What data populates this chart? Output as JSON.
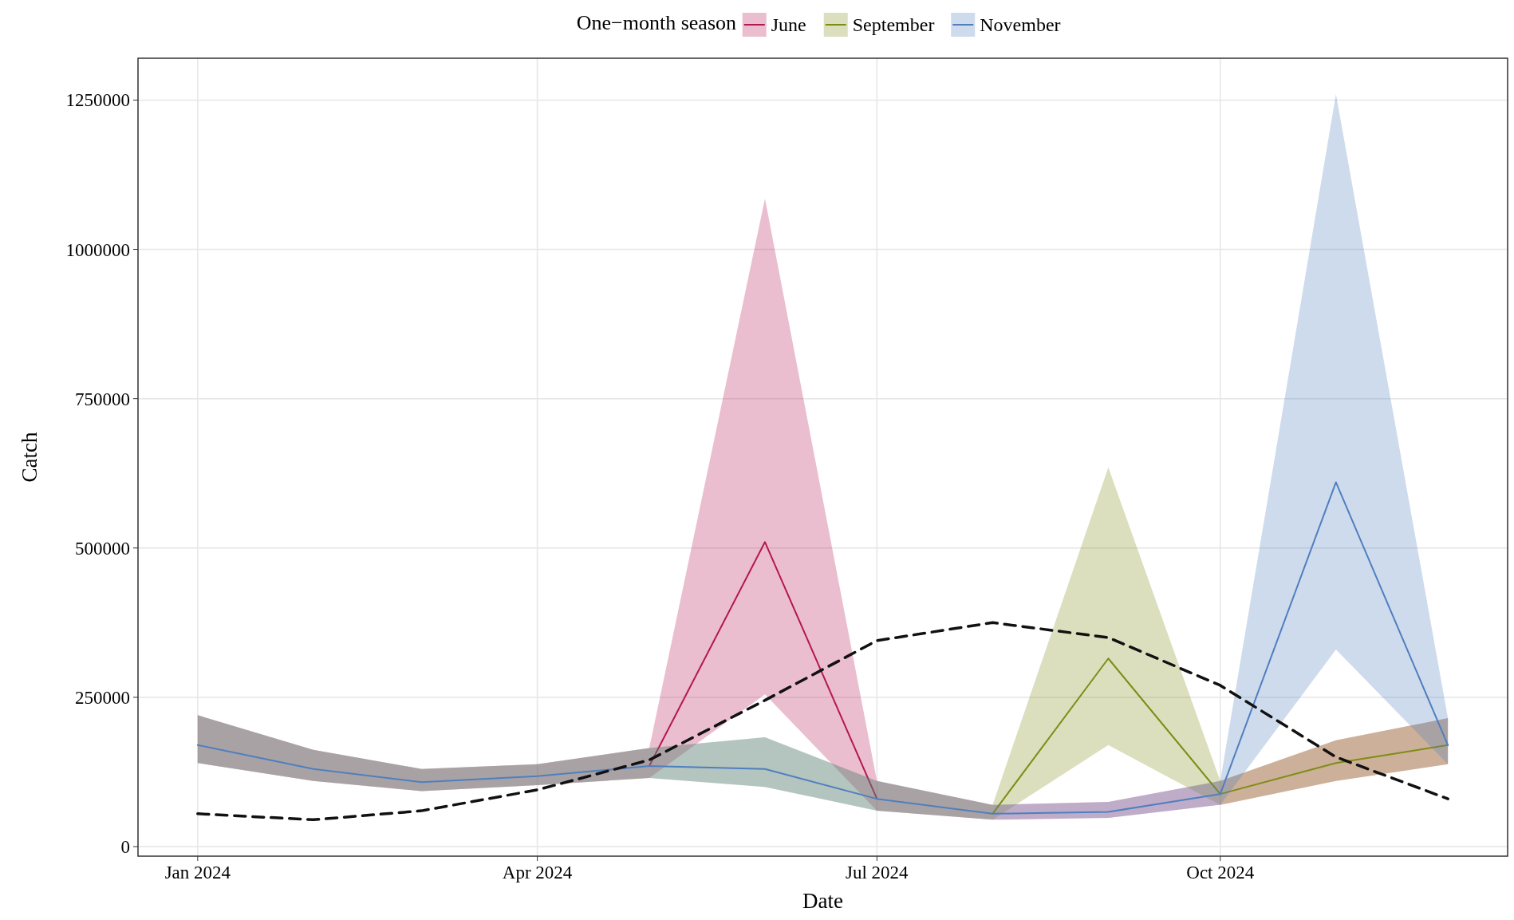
{
  "chart_data": {
    "type": "line",
    "xlabel": "Date",
    "ylabel": "Catch",
    "legend_title": "One−month season",
    "legend": "top",
    "grid": true,
    "x": [
      "2024-01-01",
      "2024-02-01",
      "2024-03-01",
      "2024-04-01",
      "2024-05-01",
      "2024-06-01",
      "2024-07-01",
      "2024-08-01",
      "2024-09-01",
      "2024-10-01",
      "2024-11-01",
      "2024-12-01"
    ],
    "xlim": [
      "2023-12-16",
      "2024-12-17"
    ],
    "xticks": [
      {
        "value": "2024-01-01",
        "label": "Jan 2024"
      },
      {
        "value": "2024-04-01",
        "label": "Apr 2024"
      },
      {
        "value": "2024-07-01",
        "label": "Jul 2024"
      },
      {
        "value": "2024-10-01",
        "label": "Oct 2024"
      }
    ],
    "ylim": [
      -16000,
      1320000
    ],
    "yticks": [
      0,
      250000,
      500000,
      750000,
      1000000,
      1250000
    ],
    "series": [
      {
        "name": "June",
        "color": "#b5174f",
        "values": [
          null,
          null,
          null,
          null,
          135000,
          510000,
          80000,
          null,
          null,
          null,
          null,
          null
        ],
        "lower": [
          140000,
          110000,
          93000,
          103000,
          115000,
          255000,
          60000,
          45000,
          48000,
          70000,
          110000,
          138000
        ],
        "upper": [
          220000,
          162000,
          130000,
          138000,
          165000,
          1085000,
          110000,
          70000,
          75000,
          110000,
          178000,
          215000
        ]
      },
      {
        "name": "September",
        "color": "#7f8c14",
        "values": [
          null,
          null,
          null,
          null,
          null,
          null,
          null,
          55000,
          315000,
          88000,
          140000,
          170000
        ],
        "lower": [
          140000,
          110000,
          93000,
          103000,
          115000,
          100000,
          60000,
          45000,
          170000,
          70000,
          110000,
          138000
        ],
        "upper": [
          220000,
          162000,
          130000,
          138000,
          165000,
          183000,
          110000,
          70000,
          635000,
          110000,
          178000,
          215000
        ]
      },
      {
        "name": "November",
        "color": "#4f7fbf",
        "values": [
          170000,
          130000,
          108000,
          118000,
          135000,
          130000,
          80000,
          55000,
          58000,
          88000,
          610000,
          170000
        ],
        "lower": [
          140000,
          110000,
          93000,
          103000,
          115000,
          100000,
          60000,
          45000,
          48000,
          70000,
          330000,
          138000
        ],
        "upper": [
          220000,
          162000,
          130000,
          138000,
          165000,
          183000,
          110000,
          70000,
          75000,
          110000,
          1260000,
          215000
        ]
      },
      {
        "color": "#111111",
        "line_style": "dashed",
        "values": [
          55000,
          45000,
          60000,
          95000,
          145000,
          245000,
          345000,
          375000,
          350000,
          270000,
          150000,
          80000
        ]
      }
    ]
  }
}
